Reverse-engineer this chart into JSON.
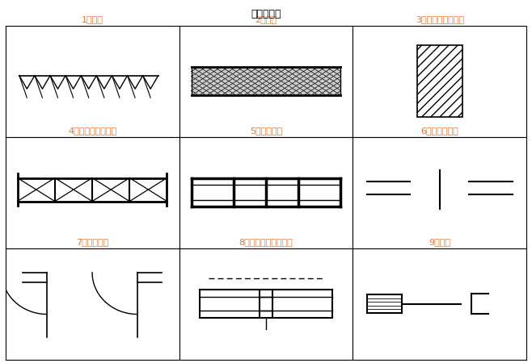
{
  "title": "《選択肢》",
  "title_color": "#000000",
  "label_color": "#E07B39",
  "labels": [
    "1．地盤",
    "2．石材",
    "3．木材（化粧材）",
    "4．普通ブロック壁",
    "5．木造大壁",
    "6．出入口一般",
    "7．両開き扉",
    "8．格子付引き違い窓",
    "9．雨戸"
  ],
  "bg_color": "#FFFFFF",
  "border_color": "#000000"
}
